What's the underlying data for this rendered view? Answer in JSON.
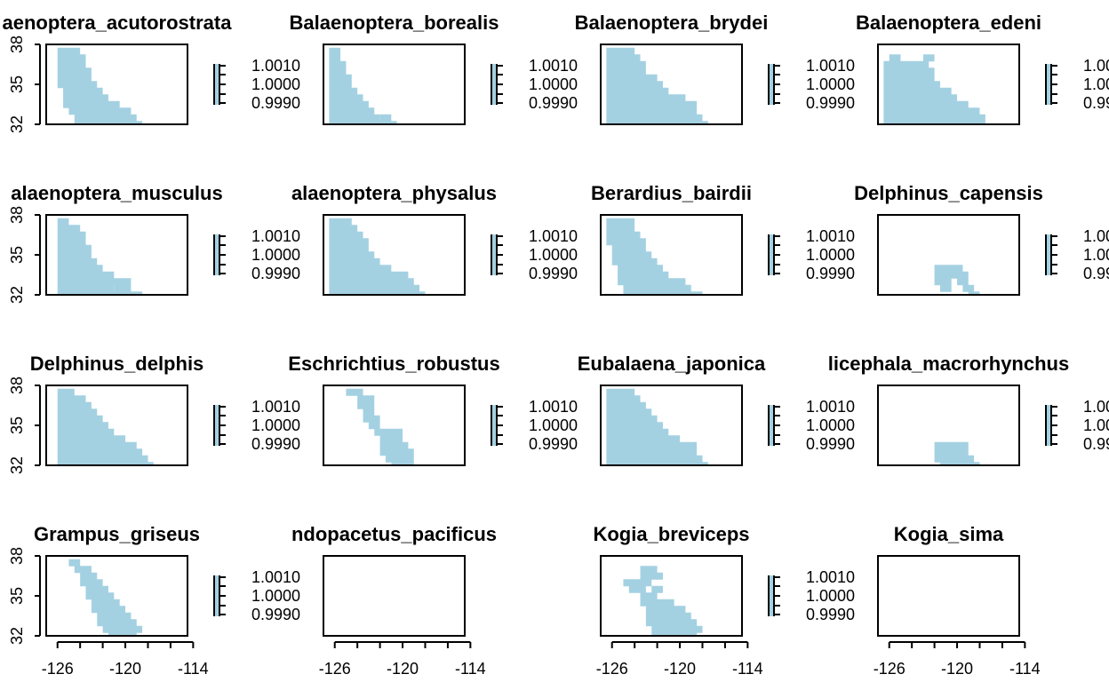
{
  "fill_color": "#A4D1E2",
  "chart_data": {
    "type": "heatmap",
    "grid": false,
    "layout": "4x4 panel grid, each panel with its own legend at right",
    "x_ticks": [
      -126,
      -120,
      -114
    ],
    "x_tick_labels": [
      "-126",
      "-120",
      "-114"
    ],
    "y_ticks": [
      32,
      35,
      38
    ],
    "y_tick_labels": [
      "32",
      "35",
      "38"
    ],
    "xlim": [
      -127,
      -114.5
    ],
    "ylim": [
      32,
      38
    ],
    "cell_size_deg": 0.5,
    "legend_labels": [
      "1.0010",
      "1.0000",
      "0.9990"
    ],
    "legend_value": 1.0,
    "panels": [
      {
        "title": "Balaenoptera_acutorostrata",
        "title_visible": "aenoptera_acutorostrata",
        "rows": [
          [
            32.0,
            -124.25,
            -118.75
          ],
          [
            32.5,
            -124.25,
            -119.25
          ],
          [
            33.0,
            -124.75,
            -119.75
          ],
          [
            33.5,
            -125.25,
            -120.75
          ],
          [
            34.0,
            -125.25,
            -121.75
          ],
          [
            34.5,
            -125.25,
            -122.25
          ],
          [
            35.0,
            -125.75,
            -122.75
          ],
          [
            35.5,
            -125.75,
            -123.25
          ],
          [
            36.0,
            -125.75,
            -123.25
          ],
          [
            36.5,
            -125.75,
            -123.75
          ],
          [
            37.0,
            -125.75,
            -123.75
          ],
          [
            37.5,
            -125.75,
            -124.25
          ]
        ],
        "axes_x": false,
        "axes_y": true,
        "legend": true
      },
      {
        "title": "Balaenoptera_borealis",
        "title_visible": "Balaenoptera_borealis",
        "rows": [
          [
            32.0,
            -126.25,
            -122.75,
            -122.25,
            -120.75
          ],
          [
            32.5,
            -126.25,
            -122.25,
            -121.75,
            -121.25
          ],
          [
            33.0,
            -126.25,
            -122.75
          ],
          [
            33.5,
            -126.25,
            -123.25
          ],
          [
            34.0,
            -126.25,
            -123.75
          ],
          [
            34.5,
            -126.25,
            -124.25
          ],
          [
            35.0,
            -126.25,
            -124.75
          ],
          [
            35.5,
            -126.25,
            -124.75
          ],
          [
            36.0,
            -126.25,
            -125.25
          ],
          [
            36.5,
            -126.25,
            -125.25
          ],
          [
            37.0,
            -126.25,
            -125.75
          ],
          [
            37.5,
            -126.25,
            -125.75
          ]
        ],
        "axes_x": false,
        "axes_y": false,
        "legend": true
      },
      {
        "title": "Balaenoptera_brydei",
        "title_visible": "Balaenoptera_brydei",
        "rows": [
          [
            32.0,
            -126.25,
            -117.75
          ],
          [
            32.5,
            -126.25,
            -118.25
          ],
          [
            33.0,
            -126.25,
            -118.75
          ],
          [
            33.5,
            -126.25,
            -118.75
          ],
          [
            34.0,
            -126.25,
            -119.75
          ],
          [
            34.5,
            -126.25,
            -121.25
          ],
          [
            35.0,
            -126.25,
            -121.75
          ],
          [
            35.5,
            -126.25,
            -122.25
          ],
          [
            36.0,
            -126.25,
            -123.25
          ],
          [
            36.5,
            -126.25,
            -123.25
          ],
          [
            37.0,
            -126.25,
            -123.75
          ],
          [
            37.5,
            -126.25,
            -124.25
          ]
        ],
        "axes_x": false,
        "axes_y": false,
        "legend": true
      },
      {
        "title": "Balaenoptera_edeni",
        "title_visible": "Balaenoptera_edeni",
        "rows": [
          [
            32.0,
            -126.25,
            -117.75
          ],
          [
            32.5,
            -126.25,
            -117.75
          ],
          [
            33.0,
            -126.25,
            -118.25
          ],
          [
            33.5,
            -126.25,
            -119.25
          ],
          [
            34.0,
            -126.25,
            -120.25
          ],
          [
            34.5,
            -126.25,
            -120.75
          ],
          [
            35.0,
            -126.25,
            -121.75
          ],
          [
            35.5,
            -126.25,
            -122.25
          ],
          [
            36.0,
            -126.25,
            -122.25
          ],
          [
            36.5,
            -126.25,
            -122.75
          ],
          [
            37.0,
            -125.75,
            -125.25,
            -122.75,
            -122.25
          ]
        ],
        "axes_x": false,
        "axes_y": false,
        "legend": true
      },
      {
        "title": "Balaenoptera_musculus",
        "title_visible": "alaenoptera_musculus",
        "rows": [
          [
            32.0,
            -125.75,
            -118.75
          ],
          [
            32.5,
            -125.75,
            -121.25,
            -120.75,
            -119.75
          ],
          [
            33.0,
            -125.75,
            -119.75
          ],
          [
            33.5,
            -125.75,
            -121.25
          ],
          [
            34.0,
            -125.75,
            -122.25
          ],
          [
            34.5,
            -125.75,
            -122.75
          ],
          [
            35.0,
            -125.75,
            -123.25
          ],
          [
            35.5,
            -125.75,
            -123.25
          ],
          [
            36.0,
            -125.75,
            -123.75
          ],
          [
            36.5,
            -125.75,
            -123.75
          ],
          [
            37.0,
            -125.75,
            -124.25
          ],
          [
            37.5,
            -125.75,
            -125.25
          ]
        ],
        "axes_x": false,
        "axes_y": true,
        "legend": true
      },
      {
        "title": "Balaenoptera_physalus",
        "title_visible": "alaenoptera_physalus",
        "rows": [
          [
            32.0,
            -126.25,
            -118.25
          ],
          [
            32.5,
            -126.25,
            -118.75
          ],
          [
            33.0,
            -126.25,
            -119.25
          ],
          [
            33.5,
            -126.25,
            -119.75
          ],
          [
            34.0,
            -126.25,
            -121.25
          ],
          [
            34.5,
            -126.25,
            -122.25
          ],
          [
            35.0,
            -126.25,
            -122.75
          ],
          [
            35.5,
            -126.25,
            -123.25
          ],
          [
            36.0,
            -126.25,
            -123.25
          ],
          [
            36.5,
            -126.25,
            -123.75
          ],
          [
            37.0,
            -126.25,
            -124.25
          ],
          [
            37.5,
            -126.25,
            -124.75
          ]
        ],
        "axes_x": false,
        "axes_y": false,
        "legend": true
      },
      {
        "title": "Berardius_bairdii",
        "title_visible": "Berardius_bairdii",
        "rows": [
          [
            32.0,
            -124.75,
            -118.25
          ],
          [
            32.5,
            -124.75,
            -119.25
          ],
          [
            33.0,
            -125.25,
            -119.75
          ],
          [
            33.5,
            -125.25,
            -121.25
          ],
          [
            34.0,
            -125.25,
            -121.75
          ],
          [
            34.5,
            -125.75,
            -122.25
          ],
          [
            35.0,
            -125.75,
            -122.75
          ],
          [
            35.5,
            -125.75,
            -123.25
          ],
          [
            36.0,
            -126.25,
            -123.25
          ],
          [
            36.5,
            -126.25,
            -123.75
          ],
          [
            37.0,
            -126.25,
            -124.25
          ],
          [
            37.5,
            -126.25,
            -124.25
          ]
        ],
        "axes_x": false,
        "axes_y": false,
        "legend": true
      },
      {
        "title": "Delphinus_capensis",
        "title_visible": "Delphinus_capensis",
        "rows": [
          [
            32.0,
            -118.75,
            -118.25
          ],
          [
            32.5,
            -121.25,
            -120.75,
            -119.25,
            -118.75
          ],
          [
            33.0,
            -121.75,
            -120.75,
            -119.75,
            -119.25
          ],
          [
            33.5,
            -121.75,
            -119.25
          ],
          [
            34.0,
            -121.75,
            -119.75
          ]
        ],
        "axes_x": false,
        "axes_y": false,
        "legend": true
      },
      {
        "title": "Delphinus_delphis",
        "title_visible": "Delphinus_delphis",
        "rows": [
          [
            32.0,
            -125.75,
            -117.75
          ],
          [
            32.5,
            -125.75,
            -118.25
          ],
          [
            33.0,
            -125.75,
            -118.75
          ],
          [
            33.5,
            -125.75,
            -119.25
          ],
          [
            34.0,
            -125.75,
            -120.25
          ],
          [
            34.5,
            -125.75,
            -121.25
          ],
          [
            35.0,
            -125.75,
            -121.75
          ],
          [
            35.5,
            -125.75,
            -122.25
          ],
          [
            36.0,
            -125.75,
            -122.75
          ],
          [
            36.5,
            -125.75,
            -123.25
          ],
          [
            37.0,
            -125.75,
            -123.75
          ],
          [
            37.5,
            -125.75,
            -124.75
          ]
        ],
        "axes_x": false,
        "axes_y": true,
        "legend": true
      },
      {
        "title": "Eschrichtius_robustus",
        "title_visible": "Eschrichtius_robustus",
        "rows": [
          [
            32.0,
            -120.75,
            -120.25,
            -119.75,
            -119.25
          ],
          [
            32.5,
            -121.25,
            -119.25
          ],
          [
            33.0,
            -121.75,
            -119.25
          ],
          [
            33.5,
            -121.75,
            -119.75
          ],
          [
            34.0,
            -121.75,
            -120.25
          ],
          [
            34.5,
            -122.25,
            -120.25
          ],
          [
            35.0,
            -122.75,
            -122.25
          ],
          [
            35.5,
            -123.25,
            -122.25
          ],
          [
            36.0,
            -123.25,
            -122.75
          ],
          [
            36.5,
            -123.75,
            -122.75
          ],
          [
            37.0,
            -123.75,
            -122.75
          ],
          [
            37.5,
            -124.75,
            -123.75
          ]
        ],
        "axes_x": false,
        "axes_y": false,
        "legend": true
      },
      {
        "title": "Eubalaena_japonica",
        "title_visible": "Eubalaena_japonica",
        "rows": [
          [
            32.0,
            -126.25,
            -117.75
          ],
          [
            32.5,
            -126.25,
            -118.25
          ],
          [
            33.0,
            -126.25,
            -118.75
          ],
          [
            33.5,
            -126.25,
            -118.75
          ],
          [
            34.0,
            -126.25,
            -120.25
          ],
          [
            34.5,
            -126.25,
            -121.25
          ],
          [
            35.0,
            -126.25,
            -121.75
          ],
          [
            35.5,
            -126.25,
            -122.25
          ],
          [
            36.0,
            -126.25,
            -122.75
          ],
          [
            36.5,
            -126.25,
            -123.25
          ],
          [
            37.0,
            -126.25,
            -123.75
          ],
          [
            37.5,
            -126.25,
            -124.25
          ]
        ],
        "axes_x": false,
        "axes_y": false,
        "legend": true
      },
      {
        "title": "Globicephala_macrorhynchus",
        "title_visible": "licephala_macrorhynchus",
        "rows": [
          [
            32.0,
            -121.25,
            -118.25
          ],
          [
            32.5,
            -121.75,
            -118.75
          ],
          [
            33.0,
            -121.75,
            -119.25
          ],
          [
            33.5,
            -121.75,
            -119.25
          ]
        ],
        "axes_x": false,
        "axes_y": false,
        "legend": true
      },
      {
        "title": "Grampus_griseus",
        "title_visible": "Grampus_griseus",
        "rows": [
          [
            32.0,
            -121.25,
            -119.25
          ],
          [
            32.5,
            -121.75,
            -118.75
          ],
          [
            33.0,
            -122.25,
            -119.25
          ],
          [
            33.5,
            -122.25,
            -119.75
          ],
          [
            34.0,
            -122.75,
            -120.25
          ],
          [
            34.5,
            -122.75,
            -120.75
          ],
          [
            35.0,
            -123.25,
            -121.25
          ],
          [
            35.5,
            -123.25,
            -121.75
          ],
          [
            36.0,
            -123.75,
            -122.25
          ],
          [
            36.5,
            -123.75,
            -122.75
          ],
          [
            37.0,
            -124.25,
            -123.25
          ],
          [
            37.5,
            -124.75,
            -124.25
          ]
        ],
        "axes_x": true,
        "axes_y": true,
        "legend": true
      },
      {
        "title": "Indopacetus_pacificus",
        "title_visible": "ndopacetus_pacificus",
        "rows": [],
        "axes_x": true,
        "axes_y": false,
        "legend": false
      },
      {
        "title": "Kogia_breviceps",
        "title_visible": "Kogia_breviceps",
        "rows": [
          [
            32.0,
            -122.25,
            -118.75
          ],
          [
            32.5,
            -122.25,
            -118.25
          ],
          [
            33.0,
            -122.75,
            -118.75
          ],
          [
            33.5,
            -122.75,
            -119.25
          ],
          [
            34.0,
            -122.75,
            -119.75
          ],
          [
            34.5,
            -123.25,
            -120.75
          ],
          [
            35.0,
            -123.25,
            -122.25
          ],
          [
            35.5,
            -124.25,
            -123.25,
            -122.25,
            -121.75
          ],
          [
            36.0,
            -124.75,
            -122.75
          ],
          [
            36.5,
            -123.25,
            -121.75
          ],
          [
            37.0,
            -123.25,
            -122.25
          ]
        ],
        "axes_x": true,
        "axes_y": false,
        "legend": true
      },
      {
        "title": "Kogia_sima",
        "title_visible": "Kogia_sima",
        "rows": [],
        "axes_x": true,
        "axes_y": false,
        "legend": false
      }
    ]
  }
}
